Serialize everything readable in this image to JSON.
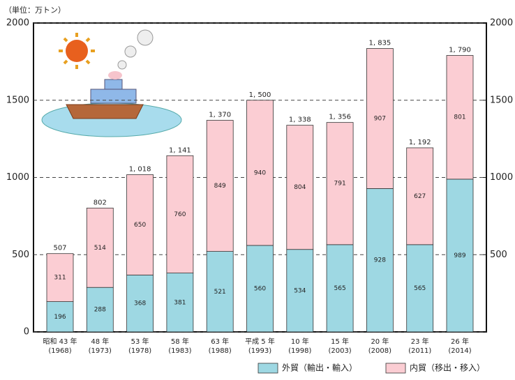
{
  "chart_data": {
    "type": "stacked-bar",
    "unit": "（単位：万トン）",
    "categories": [
      "昭和 43 年",
      "48 年",
      "53 年",
      "58 年",
      "63 年",
      "平成 5 年",
      "10 年",
      "15 年",
      "20 年",
      "23 年",
      "26 年"
    ],
    "category_years": [
      "(1968)",
      "(1973)",
      "(1978)",
      "(1983)",
      "(1988)",
      "(1993)",
      "(1998)",
      "(2003)",
      "(2008)",
      "(2011)",
      "(2014)"
    ],
    "series": [
      {
        "name": "外貿（輸出・輸入）",
        "color": "#9ed8e3",
        "values": [
          196,
          288,
          368,
          381,
          521,
          560,
          534,
          565,
          928,
          565,
          989
        ]
      },
      {
        "name": "内貿（移出・移入）",
        "color": "#fbcdd3",
        "values": [
          311,
          514,
          650,
          760,
          849,
          940,
          804,
          791,
          907,
          627,
          801
        ]
      }
    ],
    "total_labels": [
      "507",
      "802",
      "1, 018",
      "1, 141",
      "1, 370",
      "1, 500",
      "1, 338",
      "1, 356",
      "1, 835",
      "1, 192",
      "1, 790"
    ],
    "ylim": [
      0,
      2000
    ],
    "yticks": [
      0,
      500,
      1000,
      1500,
      2000
    ],
    "y2lim": [
      0,
      2000
    ],
    "y2ticks": [
      500,
      1000,
      1500,
      2000
    ],
    "grid": true
  }
}
